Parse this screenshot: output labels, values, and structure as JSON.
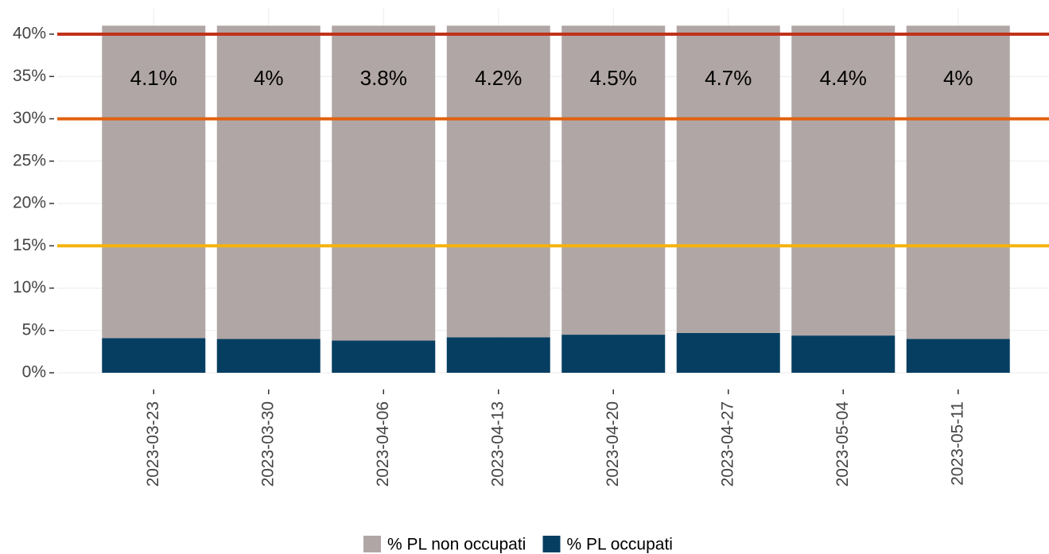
{
  "chart_data": {
    "type": "stacked_bar",
    "categories": [
      "2023-03-23",
      "2023-03-30",
      "2023-04-06",
      "2023-04-13",
      "2023-04-20",
      "2023-04-27",
      "2023-05-04",
      "2023-05-11"
    ],
    "series": [
      {
        "name": "% PL non occupati",
        "color": "#b0a6a5",
        "values": [
          36.9,
          37,
          37.2,
          36.8,
          36.5,
          36.3,
          36.6,
          37
        ]
      },
      {
        "name": "% PL occupati",
        "color": "#053e61",
        "values": [
          4.1,
          4,
          3.8,
          4.2,
          4.5,
          4.7,
          4.4,
          4
        ],
        "value_labels": [
          "4.1%",
          "4%",
          "3.8%",
          "4.2%",
          "4.5%",
          "4.7%",
          "4.4%",
          "4%"
        ]
      }
    ],
    "ylim": [
      0,
      43
    ],
    "yticks": [
      {
        "value": 0,
        "label": "0%"
      },
      {
        "value": 5,
        "label": "5%"
      },
      {
        "value": 10,
        "label": "10%"
      },
      {
        "value": 15,
        "label": "15%"
      },
      {
        "value": 20,
        "label": "20%"
      },
      {
        "value": 25,
        "label": "25%"
      },
      {
        "value": 30,
        "label": "30%"
      },
      {
        "value": 35,
        "label": "35%"
      },
      {
        "value": 40,
        "label": "40%"
      }
    ],
    "reference_lines": [
      {
        "value": 40,
        "color": "#c0321a"
      },
      {
        "value": 30,
        "color": "#e0620f"
      },
      {
        "value": 15,
        "color": "#f5b30c"
      }
    ],
    "grid": true,
    "legend": "bottom"
  }
}
